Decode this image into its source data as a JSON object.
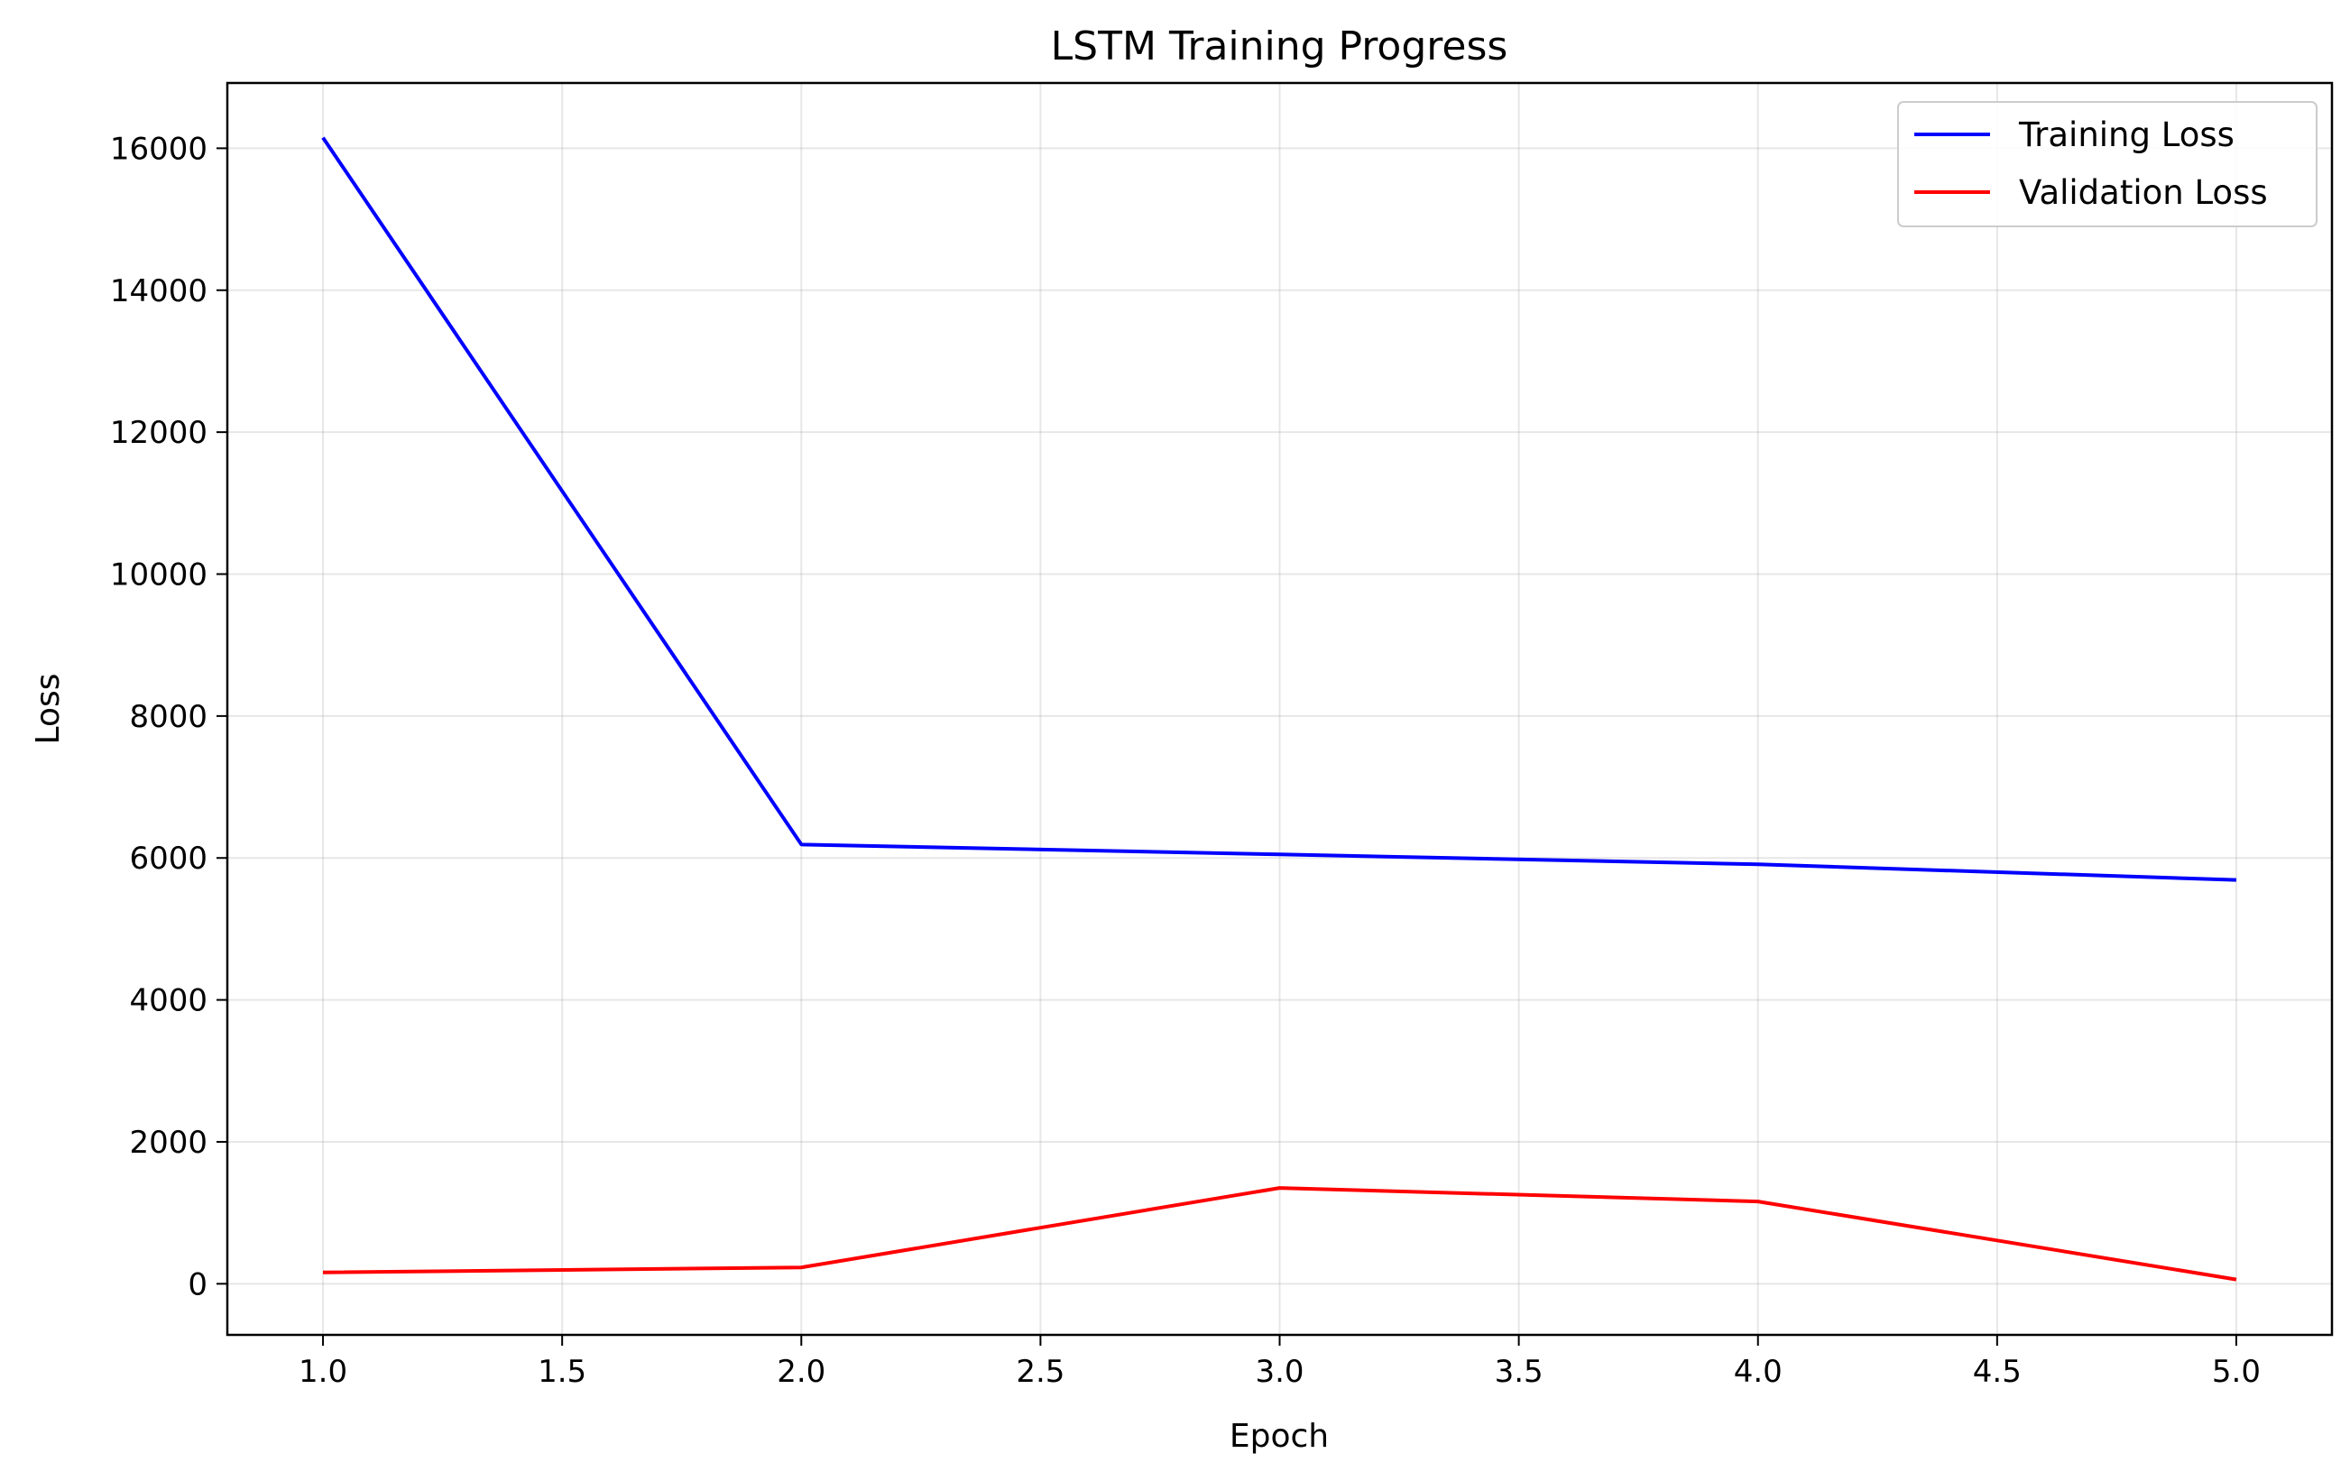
{
  "chart_data": {
    "type": "line",
    "title": "LSTM Training Progress",
    "xlabel": "Epoch",
    "ylabel": "Loss",
    "x": [
      1,
      2,
      3,
      4,
      5
    ],
    "xlim": [
      0.8,
      5.2
    ],
    "ylim": [
      -720,
      16920
    ],
    "xticks": [
      1.0,
      1.5,
      2.0,
      2.5,
      3.0,
      3.5,
      4.0,
      4.5,
      5.0
    ],
    "xtick_labels": [
      "1.0",
      "1.5",
      "2.0",
      "2.5",
      "3.0",
      "3.5",
      "4.0",
      "4.5",
      "5.0"
    ],
    "yticks": [
      0,
      2000,
      4000,
      6000,
      8000,
      10000,
      12000,
      14000,
      16000
    ],
    "ytick_labels": [
      "0",
      "2000",
      "4000",
      "6000",
      "8000",
      "10000",
      "12000",
      "14000",
      "16000"
    ],
    "grid": true,
    "legend_position": "upper right",
    "series": [
      {
        "name": "Training Loss",
        "color": "#0000ff",
        "values": [
          16150,
          6190,
          6050,
          5910,
          5690
        ]
      },
      {
        "name": "Validation Loss",
        "color": "#ff0000",
        "values": [
          160,
          230,
          1350,
          1160,
          60
        ]
      }
    ]
  }
}
